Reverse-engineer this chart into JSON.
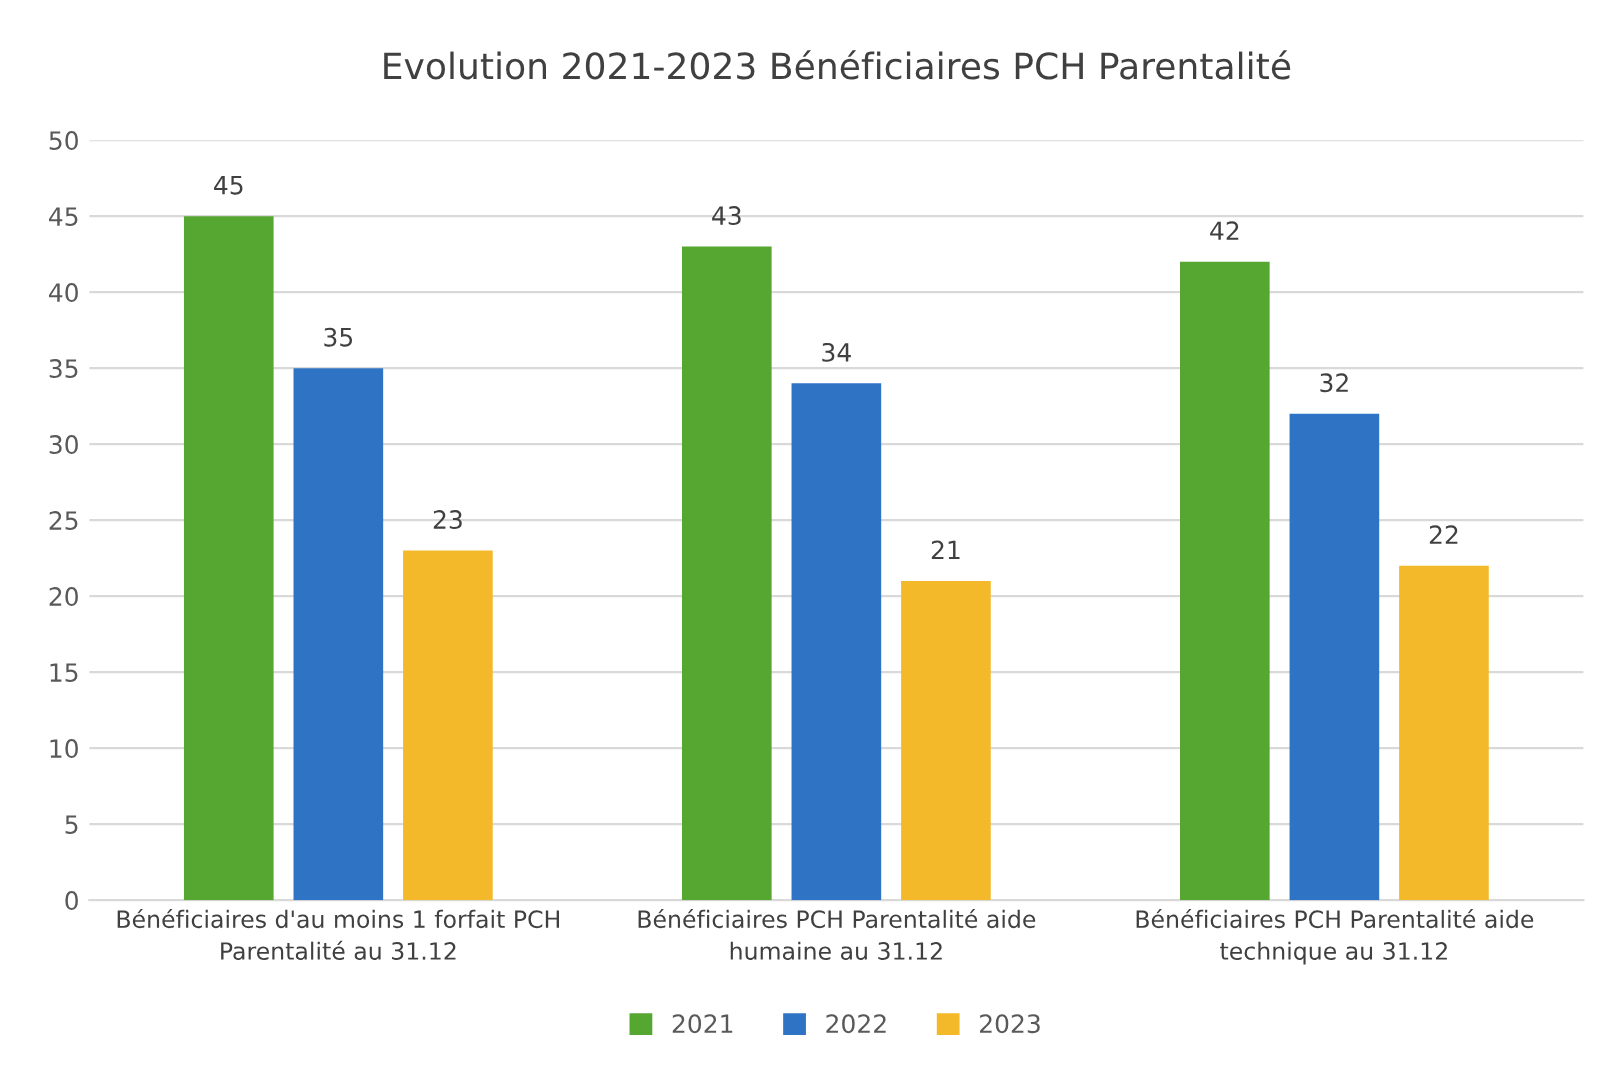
{
  "chart_data": {
    "type": "bar",
    "title": "Evolution 2021-2023 Bénéficiaires PCH Parentalité",
    "categories": [
      "Bénéficiaires d'au moins 1 forfait PCH Parentalité au 31.12",
      "Bénéficiaires PCH Parentalité aide humaine au 31.12",
      "Bénéficiaires PCH Parentalité aide technique au 31.12"
    ],
    "series": [
      {
        "name": "2021",
        "color": "#56a632",
        "values": [
          45,
          43,
          42
        ]
      },
      {
        "name": "2022",
        "color": "#2f73c4",
        "values": [
          35,
          34,
          32
        ]
      },
      {
        "name": "2023",
        "color": "#f4b92a",
        "values": [
          23,
          21,
          22
        ]
      }
    ],
    "ylim": [
      0,
      50
    ],
    "yticks": [
      0,
      5,
      10,
      15,
      20,
      25,
      30,
      35,
      40,
      45,
      50
    ],
    "grid": "y",
    "legend": "bottom",
    "data_labels": true
  }
}
